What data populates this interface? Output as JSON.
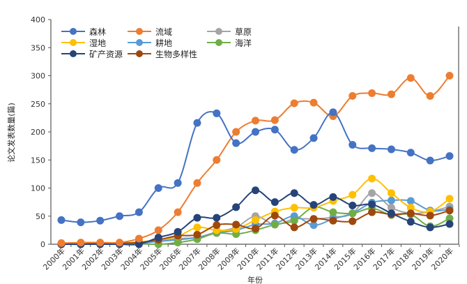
{
  "chart_data": {
    "type": "line",
    "title": "",
    "xlabel": "年份",
    "ylabel": "论文发表数量(篇)",
    "ylim": [
      0,
      400
    ],
    "yticks": [
      0,
      50,
      100,
      150,
      200,
      250,
      300,
      350,
      400
    ],
    "categories": [
      "2000年",
      "2001年",
      "2002年",
      "2003年",
      "2004年",
      "2005年",
      "2006年",
      "2007年",
      "2008年",
      "2009年",
      "2010年",
      "2011年",
      "2012年",
      "2013年",
      "2014年",
      "2015年",
      "2016年",
      "2017年",
      "2018年",
      "2019年",
      "2020年"
    ],
    "legend_position": "top-left",
    "grid": false,
    "series": [
      {
        "name": "森林",
        "color": "#4472C4",
        "values": [
          43,
          39,
          42,
          50,
          57,
          100,
          109,
          216,
          233,
          180,
          200,
          204,
          168,
          189,
          235,
          177,
          171,
          169,
          163,
          149,
          157
        ]
      },
      {
        "name": "流域",
        "color": "#ED7D31",
        "values": [
          2,
          3,
          3,
          3,
          10,
          25,
          57,
          109,
          150,
          200,
          220,
          221,
          251,
          252,
          228,
          264,
          269,
          267,
          296,
          264,
          300
        ]
      },
      {
        "name": "草原",
        "color": "#A5A5A5",
        "values": [
          1,
          1,
          2,
          2,
          3,
          6,
          10,
          12,
          22,
          30,
          50,
          35,
          45,
          45,
          48,
          55,
          91,
          65,
          55,
          58,
          67
        ]
      },
      {
        "name": "湿地",
        "color": "#FFC000",
        "values": [
          1,
          1,
          2,
          2,
          4,
          8,
          14,
          30,
          25,
          27,
          43,
          58,
          65,
          65,
          77,
          88,
          117,
          91,
          65,
          58,
          81
        ]
      },
      {
        "name": "耕地",
        "color": "#5B9BD5",
        "values": [
          1,
          1,
          1,
          2,
          2,
          5,
          8,
          12,
          20,
          25,
          35,
          37,
          50,
          34,
          45,
          55,
          74,
          78,
          77,
          60,
          62
        ]
      },
      {
        "name": "海洋",
        "color": "#70AD47",
        "values": [
          0,
          0,
          1,
          1,
          1,
          0,
          3,
          9,
          20,
          18,
          25,
          35,
          42,
          66,
          57,
          55,
          64,
          52,
          53,
          32,
          46
        ]
      },
      {
        "name": "矿产资源",
        "color": "#264478",
        "values": [
          0,
          0,
          0,
          0,
          0,
          12,
          22,
          47,
          47,
          66,
          96,
          75,
          91,
          70,
          84,
          69,
          71,
          55,
          40,
          30,
          36
        ]
      },
      {
        "name": "生物多样性",
        "color": "#9E480E",
        "values": [
          0,
          0,
          2,
          2,
          3,
          8,
          15,
          17,
          34,
          35,
          28,
          51,
          30,
          45,
          42,
          41,
          57,
          53,
          55,
          51,
          60
        ]
      }
    ]
  }
}
